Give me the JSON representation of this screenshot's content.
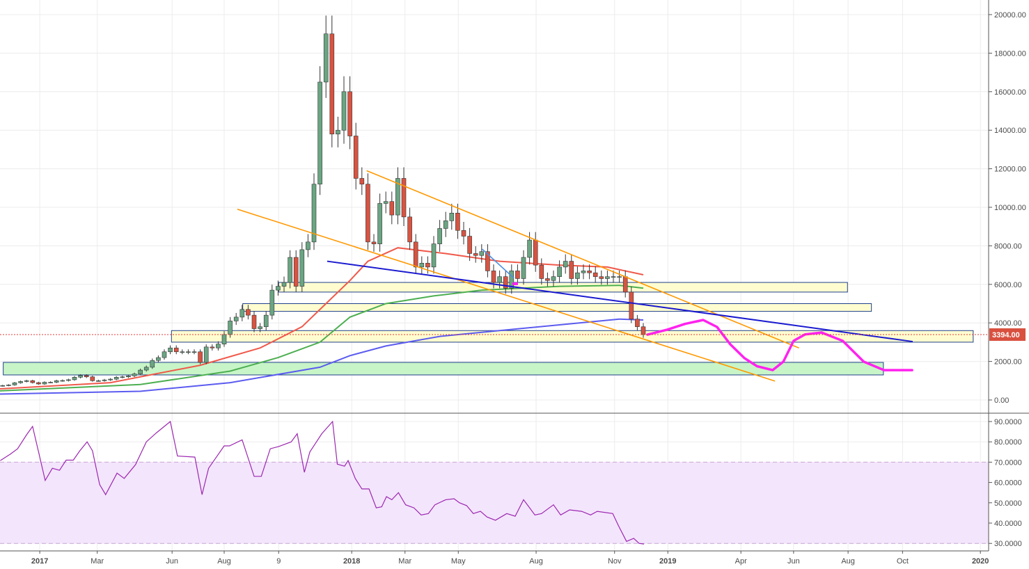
{
  "chart_data": {
    "type": "candlestick",
    "symbol_interval": "weekly",
    "x_unit": "week index",
    "price_axis": {
      "ticks": [
        "0.00",
        "2000.00",
        "4000.00",
        "6000.00",
        "8000.00",
        "10000.00",
        "12000.00",
        "14000.00",
        "16000.00",
        "18000.00",
        "20000.00"
      ],
      "range": [
        0,
        20000
      ]
    },
    "rsi_axis": {
      "ticks": [
        "30.0000",
        "40.0000",
        "50.0000",
        "60.0000",
        "70.0000",
        "80.0000",
        "90.0000"
      ],
      "range": [
        30,
        90
      ],
      "band": [
        30,
        70
      ]
    },
    "time_axis": [
      {
        "label": "2017",
        "w": 8.2,
        "bold": true
      },
      {
        "label": "Mar",
        "w": 17.8
      },
      {
        "label": "Jun",
        "w": 30.3
      },
      {
        "label": "Aug",
        "w": 39.0
      },
      {
        "label": "9",
        "w": 48.1
      },
      {
        "label": "2018",
        "w": 60.3,
        "bold": true
      },
      {
        "label": "Mar",
        "w": 69.2
      },
      {
        "label": "May",
        "w": 78.1
      },
      {
        "label": "Aug",
        "w": 91.1
      },
      {
        "label": "Nov",
        "w": 104.2
      },
      {
        "label": "2019",
        "w": 113.1,
        "bold": true
      },
      {
        "label": "Apr",
        "w": 125.3
      },
      {
        "label": "Jun",
        "w": 134.1
      },
      {
        "label": "Aug",
        "w": 143.2
      },
      {
        "label": "Oct",
        "w": 152.3
      },
      {
        "label": "2020",
        "w": 165.3,
        "bold": true
      }
    ],
    "closes": [
      700,
      730,
      750,
      780,
      890,
      960,
      1000,
      900,
      830,
      920,
      920,
      1000,
      1010,
      1050,
      1180,
      1270,
      1200,
      1000,
      1000,
      1040,
      1080,
      1180,
      1200,
      1250,
      1350,
      1550,
      1700,
      2050,
      2200,
      2500,
      2700,
      2500,
      2500,
      2500,
      2500,
      1950,
      2750,
      2700,
      2900,
      3400,
      4100,
      4300,
      4700,
      4400,
      3700,
      3800,
      4400,
      5700,
      5900,
      6100,
      7400,
      5900,
      7800,
      8200,
      11200,
      16500,
      19000,
      13800,
      14000,
      16000,
      13700,
      11500,
      11200,
      8200,
      8100,
      10200,
      10300,
      9600,
      11500,
      9500,
      8200,
      6900,
      7100,
      6900,
      8100,
      8900,
      9300,
      9700,
      8800,
      8500,
      7600,
      7500,
      7700,
      6700,
      6100,
      6400,
      5800,
      6700,
      6300,
      7400,
      8300,
      7000,
      6300,
      6200,
      6400,
      6900,
      7200,
      6300,
      6600,
      6700,
      6600,
      6400,
      6300,
      6400,
      6400,
      6400,
      5600,
      4200,
      3800,
      3394
    ],
    "last_price": {
      "value": 3394,
      "label": "3394.00"
    },
    "moving_averages": [
      {
        "name": "ma-red",
        "color": "#f0584a",
        "points": [
          [
            0,
            550
          ],
          [
            20,
            900
          ],
          [
            35,
            1800
          ],
          [
            45,
            2700
          ],
          [
            52,
            3800
          ],
          [
            56,
            5000
          ],
          [
            60,
            6200
          ],
          [
            63,
            7200
          ],
          [
            68,
            7900
          ],
          [
            76,
            7600
          ],
          [
            85,
            7200
          ],
          [
            95,
            7000
          ],
          [
            103,
            6900
          ],
          [
            109,
            6500
          ]
        ]
      },
      {
        "name": "ma-green",
        "color": "#4caf50",
        "points": [
          [
            0,
            450
          ],
          [
            25,
            800
          ],
          [
            40,
            1500
          ],
          [
            48,
            2200
          ],
          [
            55,
            3000
          ],
          [
            60,
            4300
          ],
          [
            66,
            5000
          ],
          [
            74,
            5400
          ],
          [
            82,
            5700
          ],
          [
            95,
            5900
          ],
          [
            105,
            5950
          ],
          [
            109,
            5800
          ]
        ]
      },
      {
        "name": "ma-blue",
        "color": "#5b5bf0",
        "points": [
          [
            0,
            300
          ],
          [
            25,
            450
          ],
          [
            40,
            900
          ],
          [
            55,
            1700
          ],
          [
            60,
            2300
          ],
          [
            66,
            2800
          ],
          [
            75,
            3300
          ],
          [
            85,
            3600
          ],
          [
            95,
            3900
          ],
          [
            105,
            4200
          ],
          [
            109,
            4150
          ]
        ]
      }
    ],
    "zones": [
      {
        "name": "zone-yellow-6000",
        "w": [
          48.1,
          143.1
        ],
        "v": [
          5600,
          6100
        ],
        "fill": "#fffdd0",
        "stroke": "#1e3f8a"
      },
      {
        "name": "zone-yellow-4800",
        "w": [
          42.1,
          147.1
        ],
        "v": [
          4600,
          5000
        ],
        "fill": "#fffdd0",
        "stroke": "#1e3f8a"
      },
      {
        "name": "zone-yellow-3300",
        "w": [
          30.2,
          164.1
        ],
        "v": [
          3000,
          3600
        ],
        "fill": "#fffdd0",
        "stroke": "#1e3f8a"
      },
      {
        "name": "zone-green-1600",
        "w": [
          2.1,
          149.1
        ],
        "v": [
          1300,
          1950
        ],
        "fill": "#c8f5c8",
        "stroke": "#1e3f8a"
      }
    ],
    "trendlines": [
      {
        "name": "orange-upper-trendline",
        "color": "#ff9800",
        "width": 1.6,
        "p": [
          [
            62.8,
            11900
          ],
          [
            135.0,
            2700
          ]
        ]
      },
      {
        "name": "orange-lower-trendline",
        "color": "#ff9800",
        "width": 1.6,
        "p": [
          [
            41.2,
            9900
          ],
          [
            131.0,
            980
          ]
        ]
      },
      {
        "name": "blue-trendline",
        "color": "#1a1ad0",
        "width": 2,
        "p": [
          [
            56.2,
            7200
          ],
          [
            154.0,
            3030
          ]
        ]
      },
      {
        "name": "small-blue-line",
        "color": "#4a90e2",
        "width": 1.6,
        "p": [
          [
            82.1,
            7830
          ],
          [
            87.4,
            6320
          ]
        ]
      }
    ],
    "projection": {
      "color": "#ff22ee",
      "points": [
        [
          109.7,
          3390
        ],
        [
          113,
          3650
        ],
        [
          116,
          3950
        ],
        [
          119.0,
          4150
        ],
        [
          121.3,
          3790
        ],
        [
          123.5,
          2900
        ],
        [
          125.9,
          2170
        ],
        [
          128,
          1750
        ],
        [
          130.6,
          1550
        ],
        [
          132.4,
          1990
        ],
        [
          134.1,
          3070
        ],
        [
          136,
          3400
        ],
        [
          138.8,
          3500
        ],
        [
          142.3,
          3070
        ],
        [
          145.8,
          1990
        ],
        [
          149.2,
          1550
        ],
        [
          153.9,
          1550
        ]
      ]
    },
    "marker": {
      "w": 87.6,
      "v": 6030,
      "color": "#ff22ee"
    },
    "rsi": {
      "color": "#9c27b0",
      "band_fill": "#f3e5fc",
      "points": [
        [
          1.6,
          70.8
        ],
        [
          3.3,
          74
        ],
        [
          4.5,
          76.6
        ],
        [
          6.0,
          83.5
        ],
        [
          7.0,
          87.6
        ],
        [
          8.0,
          75
        ],
        [
          9.1,
          61
        ],
        [
          10.3,
          67
        ],
        [
          11.5,
          66
        ],
        [
          12.6,
          71
        ],
        [
          13.8,
          71
        ],
        [
          14.9,
          75.6
        ],
        [
          16.1,
          80
        ],
        [
          17.0,
          75.6
        ],
        [
          18.2,
          59
        ],
        [
          19.2,
          54
        ],
        [
          21.1,
          64.6
        ],
        [
          22.3,
          62
        ],
        [
          24.2,
          68.8
        ],
        [
          26.0,
          80
        ],
        [
          27.7,
          84.5
        ],
        [
          30.0,
          90
        ],
        [
          31.2,
          73
        ],
        [
          34.1,
          72.5
        ],
        [
          35.3,
          54
        ],
        [
          36.4,
          67
        ],
        [
          39.0,
          78
        ],
        [
          39.9,
          78
        ],
        [
          42.0,
          81
        ],
        [
          44.0,
          63
        ],
        [
          45.2,
          63
        ],
        [
          46.7,
          76.6
        ],
        [
          48.1,
          77.7
        ],
        [
          50.2,
          80
        ],
        [
          51.2,
          84
        ],
        [
          52.4,
          65
        ],
        [
          53.3,
          75
        ],
        [
          55.3,
          84
        ],
        [
          57.1,
          90
        ],
        [
          57.9,
          69
        ],
        [
          59.1,
          68
        ],
        [
          59.7,
          70.8
        ],
        [
          60.9,
          62
        ],
        [
          62.0,
          56.8
        ],
        [
          63.2,
          56.8
        ],
        [
          64.4,
          47.5
        ],
        [
          65.3,
          48
        ],
        [
          66.1,
          53
        ],
        [
          67.0,
          51.5
        ],
        [
          68.1,
          55
        ],
        [
          69.3,
          49
        ],
        [
          70.7,
          47.5
        ],
        [
          71.9,
          44
        ],
        [
          73.1,
          44.7
        ],
        [
          74.2,
          49
        ],
        [
          76.0,
          51.5
        ],
        [
          77.4,
          52
        ],
        [
          78.3,
          50
        ],
        [
          79.5,
          48.6
        ],
        [
          80.6,
          44.7
        ],
        [
          81.8,
          45.8
        ],
        [
          82.9,
          43
        ],
        [
          84.3,
          41.4
        ],
        [
          86.2,
          44.7
        ],
        [
          87.6,
          43.4
        ],
        [
          89.0,
          51.5
        ],
        [
          90.9,
          44
        ],
        [
          92.0,
          44.7
        ],
        [
          94.0,
          49
        ],
        [
          95.2,
          44
        ],
        [
          96.7,
          46.5
        ],
        [
          98.7,
          45.8
        ],
        [
          100.2,
          44
        ],
        [
          101.3,
          45.8
        ],
        [
          103.9,
          44.7
        ],
        [
          104.8,
          39
        ],
        [
          106.2,
          31
        ],
        [
          107.4,
          32.5
        ],
        [
          108.3,
          30
        ],
        [
          109.1,
          29.7
        ]
      ]
    },
    "colors": {
      "up": "#6ba583",
      "down": "#d75442",
      "grid": "#ececec",
      "axis": "#555555"
    }
  }
}
